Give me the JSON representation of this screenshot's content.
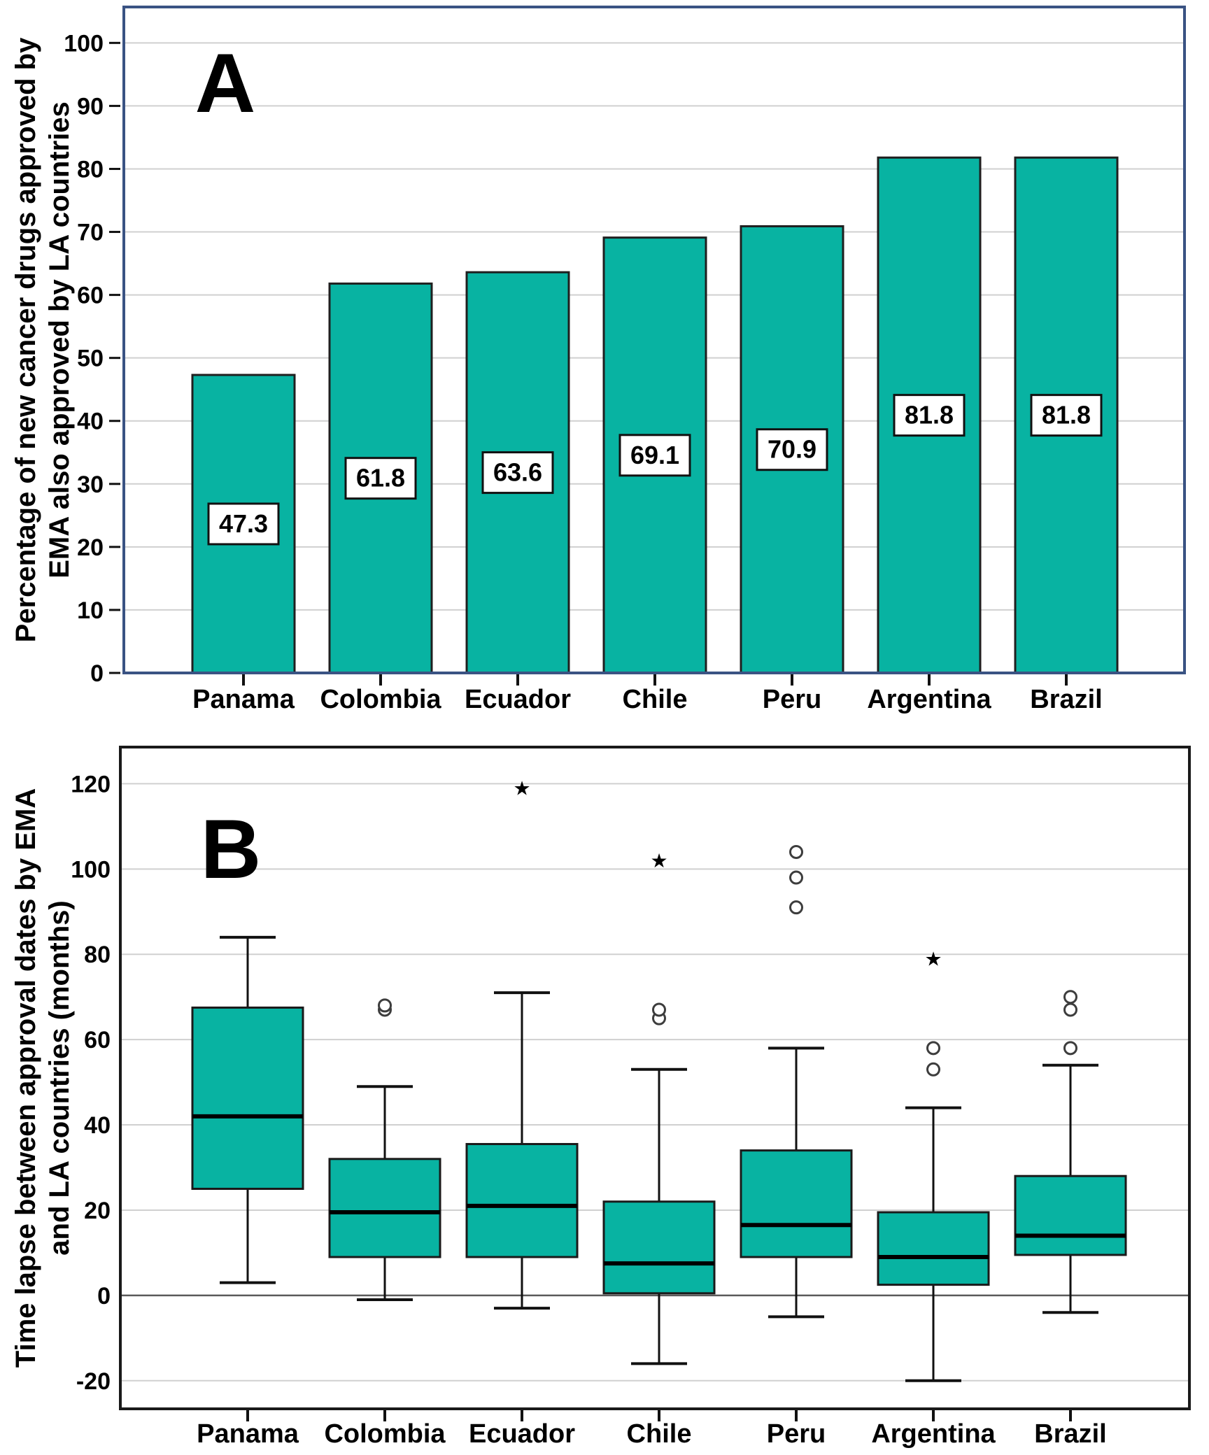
{
  "figure": {
    "background": "#ffffff",
    "accent_color": "#08b3a2",
    "panel_a_frame_color": "#3a5383",
    "panel_b_frame_color": "#1a1a1a",
    "gridline_color": "#d0d0d0",
    "zero_line_color": "#5a5a5a",
    "outlier_circle_icon": "open-circle",
    "outlier_star_icon": "black-star"
  },
  "chart_data": [
    {
      "type": "bar",
      "panel_label": "A",
      "title": "",
      "xlabel": "",
      "ylabel": "Percentage of new cancer drugs approved by EMA also approved by LA countries",
      "ylabel_lines": [
        "Percentage of new cancer drugs approved by",
        "EMA also approved by LA countries"
      ],
      "categories": [
        "Panama",
        "Colombia",
        "Ecuador",
        "Chile",
        "Peru",
        "Argentina",
        "Brazil"
      ],
      "values": [
        47.3,
        61.8,
        63.6,
        69.1,
        70.9,
        81.8,
        81.8
      ],
      "bar_labels": [
        "47.3",
        "61.8",
        "63.6",
        "69.1",
        "70.9",
        "81.8",
        "81.8"
      ],
      "yticks": [
        0,
        10,
        20,
        30,
        40,
        50,
        60,
        70,
        80,
        90,
        100
      ],
      "ylim": [
        0,
        105.7
      ],
      "grid": true,
      "bar_color": "#08b3a2",
      "frame_color": "#3a5383"
    },
    {
      "type": "boxplot",
      "panel_label": "B",
      "title": "",
      "xlabel": "",
      "ylabel": "Time lapse between approval dates by EMA and LA countries (months)",
      "ylabel_lines": [
        "Time lapse between approval dates by EMA",
        "and LA countries (months)"
      ],
      "categories": [
        "Panama",
        "Colombia",
        "Ecuador",
        "Chile",
        "Peru",
        "Argentina",
        "Brazil"
      ],
      "series": [
        {
          "name": "Panama",
          "whisker_low": 3,
          "q1": 25,
          "median": 42,
          "q3": 67.5,
          "whisker_high": 84,
          "outliers_circle": [],
          "outliers_star": []
        },
        {
          "name": "Colombia",
          "whisker_low": -1,
          "q1": 9,
          "median": 19.5,
          "q3": 32,
          "whisker_high": 49,
          "outliers_circle": [
            67,
            68
          ],
          "outliers_star": []
        },
        {
          "name": "Ecuador",
          "whisker_low": -3,
          "q1": 9,
          "median": 21,
          "q3": 35.5,
          "whisker_high": 71,
          "outliers_circle": [],
          "outliers_star": [
            119
          ]
        },
        {
          "name": "Chile",
          "whisker_low": -16,
          "q1": 0.5,
          "median": 7.5,
          "q3": 22,
          "whisker_high": 53,
          "outliers_circle": [
            65,
            67
          ],
          "outliers_star": [
            102
          ]
        },
        {
          "name": "Peru",
          "whisker_low": -5,
          "q1": 9,
          "median": 16.5,
          "q3": 34,
          "whisker_high": 58,
          "outliers_circle": [
            91,
            98,
            104
          ],
          "outliers_star": []
        },
        {
          "name": "Argentina",
          "whisker_low": -20,
          "q1": 2.5,
          "median": 9,
          "q3": 19.5,
          "whisker_high": 44,
          "outliers_circle": [
            53,
            58
          ],
          "outliers_star": [
            79
          ]
        },
        {
          "name": "Brazil",
          "whisker_low": -4,
          "q1": 9.5,
          "median": 14,
          "q3": 28,
          "whisker_high": 54,
          "outliers_circle": [
            58,
            67,
            70
          ],
          "outliers_star": []
        }
      ],
      "yticks": [
        -20,
        0,
        20,
        40,
        60,
        80,
        100,
        120
      ],
      "ylim": [
        -26.6,
        128.6
      ],
      "zero_reference_line": 0,
      "grid": true,
      "box_color": "#08b3a2",
      "frame_color": "#1a1a1a"
    }
  ]
}
